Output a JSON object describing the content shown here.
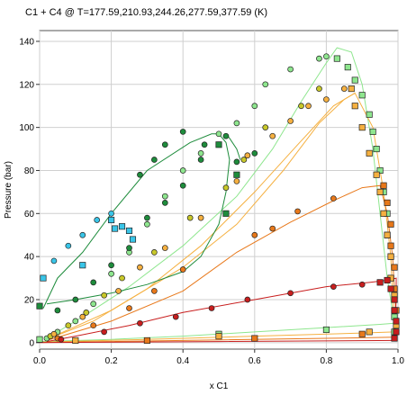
{
  "chart_data": {
    "type": "scatter",
    "title": "C1 + C4 @ T=177.59,210.93,244.26,277.59,377.59 (K)",
    "xlabel": "x C1",
    "ylabel": "Pressure (bar)",
    "xlim": [
      0,
      1
    ],
    "ylim": [
      -3,
      145
    ],
    "xticks": [
      "0.0",
      "0.2",
      "0.4",
      "0.6",
      "0.8",
      "1.0"
    ],
    "yticks": [
      "0",
      "20",
      "40",
      "60",
      "80",
      "100",
      "120",
      "140"
    ],
    "grid": true,
    "colors": {
      "cyan": "#39c5e8",
      "green_light": "#8ee68e",
      "green_dark": "#1e8c3c",
      "yellow_olive": "#c8c82a",
      "orange_light": "#f5b040",
      "orange": "#e8781a",
      "red": "#c81e1e"
    },
    "curves": [
      {
        "color": "green_light",
        "points": [
          [
            0,
            0.5
          ],
          [
            0.2,
            1.5
          ],
          [
            0.4,
            3
          ],
          [
            0.6,
            5
          ],
          [
            0.8,
            7
          ],
          [
            0.95,
            8.5
          ],
          [
            0.99,
            9
          ]
        ]
      },
      {
        "color": "green_light",
        "points": [
          [
            0.02,
            2
          ],
          [
            0.12,
            12
          ],
          [
            0.25,
            26
          ],
          [
            0.4,
            45
          ],
          [
            0.55,
            68
          ],
          [
            0.65,
            90
          ],
          [
            0.73,
            112
          ],
          [
            0.8,
            130
          ],
          [
            0.83,
            137
          ],
          [
            0.87,
            135
          ],
          [
            0.9,
            120
          ],
          [
            0.93,
            90
          ],
          [
            0.95,
            60
          ],
          [
            0.97,
            30
          ],
          [
            0.99,
            9
          ]
        ]
      },
      {
        "color": "orange_light",
        "points": [
          [
            0,
            0.2
          ],
          [
            0.3,
            1.5
          ],
          [
            0.6,
            3
          ],
          [
            0.9,
            4.5
          ],
          [
            0.99,
            5
          ]
        ]
      },
      {
        "color": "orange_light",
        "points": [
          [
            0.02,
            1.5
          ],
          [
            0.15,
            10
          ],
          [
            0.3,
            25
          ],
          [
            0.45,
            45
          ],
          [
            0.6,
            70
          ],
          [
            0.72,
            92
          ],
          [
            0.82,
            110
          ],
          [
            0.88,
            116
          ],
          [
            0.93,
            100
          ],
          [
            0.96,
            70
          ],
          [
            0.98,
            40
          ],
          [
            0.99,
            5
          ]
        ]
      },
      {
        "color": "orange_light",
        "points": [
          [
            0.02,
            1.5
          ],
          [
            0.2,
            15
          ],
          [
            0.4,
            35
          ],
          [
            0.55,
            55
          ],
          [
            0.68,
            80
          ],
          [
            0.78,
            102
          ],
          [
            0.85,
            113
          ],
          [
            0.88,
            116
          ]
        ]
      },
      {
        "color": "orange",
        "points": [
          [
            0,
            0.1
          ],
          [
            0.4,
            1
          ],
          [
            0.8,
            2
          ],
          [
            0.99,
            2.5
          ]
        ]
      },
      {
        "color": "orange",
        "points": [
          [
            0.02,
            1
          ],
          [
            0.2,
            10
          ],
          [
            0.4,
            24
          ],
          [
            0.55,
            42
          ],
          [
            0.7,
            56
          ],
          [
            0.82,
            66
          ],
          [
            0.9,
            72
          ],
          [
            0.95,
            73
          ],
          [
            0.97,
            60
          ],
          [
            0.985,
            40
          ],
          [
            0.995,
            10
          ],
          [
            0.99,
            2.5
          ]
        ]
      },
      {
        "color": "red",
        "points": [
          [
            0,
            0
          ],
          [
            0.5,
            0.5
          ],
          [
            0.99,
            1
          ]
        ]
      },
      {
        "color": "red",
        "points": [
          [
            0.02,
            0.5
          ],
          [
            0.1,
            3
          ],
          [
            0.25,
            8
          ],
          [
            0.4,
            14
          ],
          [
            0.6,
            20
          ],
          [
            0.8,
            26
          ],
          [
            0.92,
            28
          ],
          [
            0.97,
            29
          ],
          [
            0.995,
            30
          ],
          [
            0.995,
            20
          ],
          [
            0.99,
            1
          ]
        ]
      },
      {
        "color": "green_dark",
        "points": [
          [
            0.02,
            18
          ],
          [
            0.1,
            20
          ],
          [
            0.2,
            23
          ],
          [
            0.3,
            27
          ],
          [
            0.4,
            33
          ],
          [
            0.45,
            40
          ],
          [
            0.5,
            55
          ],
          [
            0.52,
            70
          ],
          [
            0.53,
            85
          ],
          [
            0.52,
            93
          ],
          [
            0.5,
            97
          ],
          [
            0.48,
            97
          ],
          [
            0.42,
            93
          ],
          [
            0.3,
            80
          ],
          [
            0.2,
            60
          ],
          [
            0.12,
            42
          ],
          [
            0.05,
            30
          ],
          [
            0.01,
            16
          ]
        ]
      },
      {
        "color": "green_dark",
        "points": [
          [
            0.52,
            97
          ],
          [
            0.53,
            95
          ],
          [
            0.55,
            90
          ],
          [
            0.56,
            85
          ]
        ]
      }
    ],
    "series": [
      {
        "name": "",
        "marker": "circle",
        "color": "green_light",
        "points": [
          [
            0.02,
            2
          ],
          [
            0.05,
            5
          ],
          [
            0.1,
            10
          ],
          [
            0.15,
            18
          ],
          [
            0.2,
            32
          ],
          [
            0.25,
            42
          ],
          [
            0.3,
            55
          ],
          [
            0.35,
            68
          ],
          [
            0.4,
            80
          ],
          [
            0.45,
            88
          ],
          [
            0.5,
            97
          ],
          [
            0.55,
            102
          ],
          [
            0.6,
            110
          ],
          [
            0.63,
            120
          ],
          [
            0.7,
            127
          ],
          [
            0.78,
            132
          ],
          [
            0.8,
            133
          ]
        ]
      },
      {
        "name": "",
        "marker": "square",
        "color": "green_light",
        "points": [
          [
            0.83,
            132
          ],
          [
            0.86,
            128
          ],
          [
            0.88,
            122
          ],
          [
            0.9,
            115
          ],
          [
            0.92,
            106
          ],
          [
            0.93,
            98
          ],
          [
            0.94,
            90
          ],
          [
            0.95,
            80
          ],
          [
            0.96,
            70
          ],
          [
            0.97,
            60
          ],
          [
            0.97,
            50
          ],
          [
            0.98,
            40
          ],
          [
            0.98,
            30
          ],
          [
            0.99,
            20
          ],
          [
            0.99,
            12
          ],
          [
            0.99,
            5
          ],
          [
            0.0,
            1.5
          ],
          [
            0.5,
            4
          ],
          [
            0.8,
            6
          ]
        ]
      },
      {
        "name": "",
        "marker": "circle",
        "color": "green_dark",
        "points": [
          [
            0.05,
            15
          ],
          [
            0.1,
            20
          ],
          [
            0.15,
            28
          ],
          [
            0.2,
            36
          ],
          [
            0.25,
            44
          ],
          [
            0.3,
            58
          ],
          [
            0.35,
            65
          ],
          [
            0.4,
            73
          ],
          [
            0.45,
            85
          ],
          [
            0.5,
            92
          ],
          [
            0.52,
            96
          ],
          [
            0.55,
            84
          ],
          [
            0.6,
            88
          ],
          [
            0.32,
            85
          ],
          [
            0.28,
            78
          ],
          [
            0.35,
            92
          ],
          [
            0.4,
            98
          ],
          [
            0.46,
            92
          ]
        ]
      },
      {
        "name": "",
        "marker": "square",
        "color": "green_dark",
        "points": [
          [
            0.0,
            17
          ],
          [
            0.5,
            92
          ],
          [
            0.52,
            60
          ],
          [
            0.55,
            78
          ]
        ]
      },
      {
        "name": "",
        "marker": "circle",
        "color": "yellow_olive",
        "points": [
          [
            0.03,
            3
          ],
          [
            0.08,
            8
          ],
          [
            0.13,
            14
          ],
          [
            0.18,
            22
          ],
          [
            0.23,
            30
          ],
          [
            0.32,
            42
          ],
          [
            0.42,
            58
          ],
          [
            0.52,
            72
          ],
          [
            0.57,
            85
          ],
          [
            0.63,
            100
          ],
          [
            0.73,
            110
          ],
          [
            0.78,
            118
          ]
        ]
      },
      {
        "name": "",
        "marker": "circle",
        "color": "orange_light",
        "points": [
          [
            0.04,
            4
          ],
          [
            0.12,
            12
          ],
          [
            0.22,
            24
          ],
          [
            0.28,
            35
          ],
          [
            0.35,
            44
          ],
          [
            0.45,
            58
          ],
          [
            0.55,
            75
          ],
          [
            0.58,
            87
          ],
          [
            0.65,
            96
          ],
          [
            0.7,
            103
          ],
          [
            0.75,
            110
          ],
          [
            0.8,
            113
          ],
          [
            0.85,
            118
          ]
        ]
      },
      {
        "name": "",
        "marker": "square",
        "color": "orange_light",
        "points": [
          [
            0.87,
            118
          ],
          [
            0.88,
            110
          ],
          [
            0.9,
            100
          ],
          [
            0.92,
            88
          ],
          [
            0.94,
            78
          ],
          [
            0.95,
            70
          ],
          [
            0.96,
            60
          ],
          [
            0.97,
            50
          ],
          [
            0.98,
            40
          ],
          [
            0.98,
            30
          ],
          [
            0.99,
            22
          ],
          [
            0.99,
            15
          ],
          [
            0.995,
            8
          ],
          [
            0.92,
            5
          ],
          [
            0.5,
            3
          ],
          [
            0.1,
            1
          ]
        ]
      },
      {
        "name": "",
        "marker": "circle",
        "color": "orange",
        "points": [
          [
            0.05,
            2
          ],
          [
            0.15,
            8
          ],
          [
            0.25,
            16
          ],
          [
            0.32,
            24
          ],
          [
            0.4,
            34
          ],
          [
            0.6,
            50
          ],
          [
            0.65,
            53
          ],
          [
            0.72,
            61
          ],
          [
            0.82,
            67
          ]
        ]
      },
      {
        "name": "",
        "marker": "square",
        "color": "orange",
        "points": [
          [
            0.96,
            73
          ],
          [
            0.97,
            65
          ],
          [
            0.98,
            55
          ],
          [
            0.98,
            45
          ],
          [
            0.99,
            35
          ],
          [
            0.99,
            25
          ],
          [
            0.995,
            15
          ],
          [
            0.9,
            4
          ],
          [
            0.6,
            2
          ],
          [
            0.3,
            1
          ]
        ]
      },
      {
        "name": "",
        "marker": "circle",
        "color": "red",
        "points": [
          [
            0.06,
            1.5
          ],
          [
            0.18,
            5
          ],
          [
            0.28,
            9
          ],
          [
            0.38,
            12
          ],
          [
            0.48,
            16
          ],
          [
            0.58,
            20
          ],
          [
            0.7,
            23
          ],
          [
            0.82,
            26
          ],
          [
            0.9,
            27
          ]
        ]
      },
      {
        "name": "",
        "marker": "square",
        "color": "red",
        "points": [
          [
            0.97,
            29
          ],
          [
            0.98,
            25
          ],
          [
            0.99,
            20
          ],
          [
            0.99,
            15
          ],
          [
            0.995,
            10
          ],
          [
            0.995,
            5
          ],
          [
            0.99,
            2
          ],
          [
            0.95,
            28
          ]
        ]
      },
      {
        "name": "",
        "marker": "square",
        "color": "cyan",
        "points": [
          [
            0.01,
            30
          ],
          [
            0.12,
            36
          ],
          [
            0.2,
            57
          ],
          [
            0.21,
            53
          ],
          [
            0.23,
            54
          ],
          [
            0.25,
            52
          ],
          [
            0.26,
            48
          ]
        ]
      },
      {
        "name": "",
        "marker": "circle",
        "color": "cyan",
        "points": [
          [
            0.04,
            38
          ],
          [
            0.08,
            45
          ],
          [
            0.12,
            50
          ],
          [
            0.16,
            57
          ],
          [
            0.2,
            60
          ]
        ]
      }
    ]
  }
}
